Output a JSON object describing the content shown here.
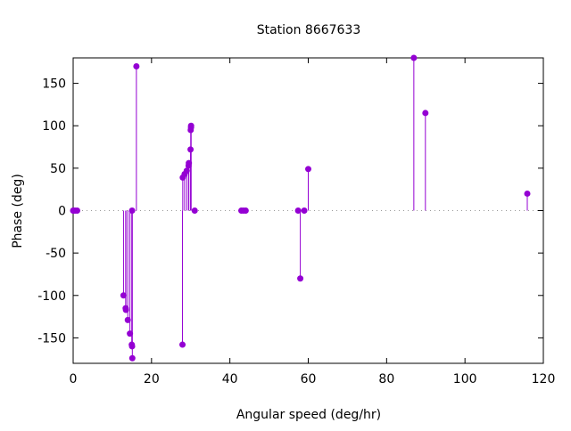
{
  "chart_data": {
    "type": "impulse",
    "title": "Station 8667633",
    "xlabel": "Angular speed (deg/hr)",
    "ylabel": "Phase (deg)",
    "xlim": [
      0,
      120
    ],
    "ylim": [
      -180,
      180
    ],
    "xticks": [
      0,
      20,
      40,
      60,
      80,
      100,
      120
    ],
    "yticks": [
      -150,
      -100,
      -50,
      0,
      50,
      100,
      150
    ],
    "color": "#9400d3",
    "points": [
      [
        0,
        0
      ],
      [
        0.04,
        0
      ],
      [
        0.5,
        0
      ],
      [
        1.02,
        0
      ],
      [
        12.85,
        -100
      ],
      [
        13.4,
        -115
      ],
      [
        13.47,
        -117
      ],
      [
        13.94,
        -129
      ],
      [
        14.49,
        -145
      ],
      [
        14.96,
        -158
      ],
      [
        15.04,
        -160
      ],
      [
        15.1,
        -174
      ],
      [
        15.04,
        0
      ],
      [
        16.14,
        170
      ],
      [
        27.9,
        -158
      ],
      [
        27.97,
        39
      ],
      [
        28.44,
        43
      ],
      [
        28.99,
        47
      ],
      [
        29.46,
        53
      ],
      [
        29.53,
        56
      ],
      [
        29.96,
        72
      ],
      [
        30.0,
        95
      ],
      [
        30.08,
        98
      ],
      [
        30.1,
        100
      ],
      [
        31.02,
        0
      ],
      [
        42.93,
        0
      ],
      [
        43.48,
        0
      ],
      [
        44.03,
        0
      ],
      [
        57.42,
        0
      ],
      [
        57.97,
        -80
      ],
      [
        58.98,
        0
      ],
      [
        60.0,
        49
      ],
      [
        86.95,
        180
      ],
      [
        89.9,
        115
      ],
      [
        115.9,
        20
      ]
    ]
  }
}
